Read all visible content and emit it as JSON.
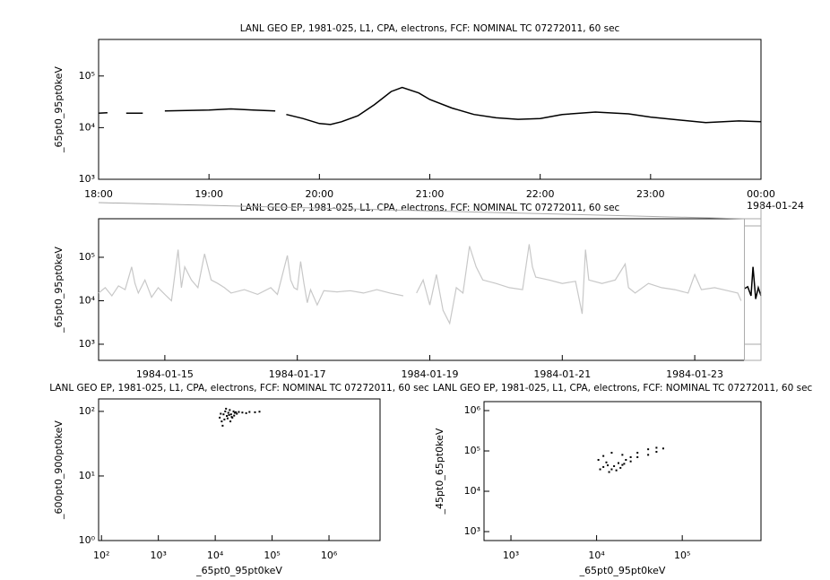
{
  "chart_data": [
    {
      "type": "line",
      "title": "LANL GEO EP, 1981-025, L1, CPA, electrons, FCF: NOMINAL TC 07272011, 60 sec",
      "y_label": "_65pt0_95pt0keV",
      "log_y": true,
      "xlim": [
        18,
        24
      ],
      "xticks": [
        {
          "value": 18,
          "label": "18:00"
        },
        {
          "value": 19,
          "label": "19:00"
        },
        {
          "value": 20,
          "label": "20:00"
        },
        {
          "value": 21,
          "label": "21:00"
        },
        {
          "value": 22,
          "label": "22:00"
        },
        {
          "value": 23,
          "label": "23:00"
        },
        {
          "value": 24,
          "label": "00:00"
        }
      ],
      "x_annotation": "1984-01-24",
      "ylim": [
        1000,
        510000
      ],
      "yticks": [
        {
          "value": 1000,
          "label": "10³"
        },
        {
          "value": 10000,
          "label": "10⁴"
        },
        {
          "value": 100000,
          "label": "10⁵"
        }
      ],
      "series": [
        {
          "color": "#000000",
          "x": [
            18.0,
            18.08,
            18.13,
            18.25,
            18.4,
            18.5,
            18.6,
            18.8,
            19.0,
            19.2,
            19.4,
            19.6,
            19.65,
            19.7,
            19.85,
            20.0,
            20.1,
            20.2,
            20.35,
            20.5,
            20.65,
            20.75,
            20.9,
            21.0,
            21.2,
            21.4,
            21.6,
            21.8,
            22.0,
            22.2,
            22.5,
            22.8,
            23.0,
            23.2,
            23.5,
            23.8,
            24.0
          ],
          "values": [
            19000,
            19500,
            null,
            19000,
            19000,
            null,
            21000,
            21500,
            22000,
            23000,
            22000,
            21000,
            null,
            18000,
            15000,
            12000,
            11500,
            13000,
            17000,
            28000,
            50000,
            60000,
            47000,
            35000,
            24000,
            18000,
            15500,
            14500,
            15000,
            18000,
            20000,
            18500,
            16000,
            14500,
            12500,
            13500,
            13000
          ]
        }
      ]
    },
    {
      "type": "line",
      "title": "LANL GEO EP, 1981-025, L1, CPA, electrons, FCF: NOMINAL TC 07272011, 60 sec",
      "y_label": "_65pt0_95pt0keV",
      "log_y": true,
      "xlim": [
        14,
        24
      ],
      "xticks": [
        {
          "value": 15,
          "label": "1984-01-15"
        },
        {
          "value": 17,
          "label": "1984-01-17"
        },
        {
          "value": 19,
          "label": "1984-01-19"
        },
        {
          "value": 21,
          "label": "1984-01-21"
        },
        {
          "value": 23,
          "label": "1984-01-23"
        }
      ],
      "ylim": [
        425,
        770000
      ],
      "yticks": [
        {
          "value": 1000,
          "label": "10³"
        },
        {
          "value": 10000,
          "label": "10⁴"
        },
        {
          "value": 100000,
          "label": "10⁵"
        }
      ],
      "series": [
        {
          "color": "#c8c8c8",
          "x": [
            14.0,
            14.1,
            14.2,
            14.3,
            14.4,
            14.5,
            14.55,
            14.6,
            14.7,
            14.8,
            14.9,
            15.0,
            15.1,
            15.2,
            15.25,
            15.3,
            15.4,
            15.5,
            15.6,
            15.7,
            15.8,
            15.9,
            16.0,
            16.2,
            16.4,
            16.6,
            16.7,
            16.85,
            16.9,
            16.95,
            17.0,
            17.05,
            17.1,
            17.15,
            17.2,
            17.3,
            17.4,
            17.6,
            17.8,
            18.0,
            18.2,
            18.4,
            18.6,
            18.7,
            18.8,
            18.9,
            19.0,
            19.1,
            19.2,
            19.3,
            19.4,
            19.5,
            19.55,
            19.6,
            19.7,
            19.8,
            20.0,
            20.2,
            20.4,
            20.5,
            20.55,
            20.6,
            20.8,
            21.0,
            21.2,
            21.3,
            21.35,
            21.4,
            21.6,
            21.8,
            21.95,
            22.0,
            22.1,
            22.3,
            22.5,
            22.7,
            22.9,
            23.0,
            23.1,
            23.3,
            23.5,
            23.65,
            23.7
          ],
          "values": [
            15000,
            20000,
            13000,
            22000,
            18000,
            60000,
            25000,
            15000,
            30000,
            12000,
            20000,
            14000,
            10000,
            150000,
            20000,
            60000,
            30000,
            20000,
            120000,
            30000,
            25000,
            20000,
            15000,
            18000,
            14000,
            20000,
            14000,
            110000,
            30000,
            20000,
            18000,
            80000,
            25000,
            9000,
            18000,
            8000,
            17000,
            16000,
            17000,
            15000,
            18000,
            15000,
            13000,
            null,
            15000,
            30000,
            8000,
            40000,
            6000,
            3000,
            20000,
            15000,
            50000,
            180000,
            60000,
            30000,
            25000,
            20000,
            18000,
            200000,
            60000,
            35000,
            30000,
            25000,
            28000,
            5000,
            150000,
            30000,
            25000,
            30000,
            70000,
            20000,
            15000,
            25000,
            20000,
            18000,
            15000,
            40000,
            18000,
            20000,
            17000,
            15000,
            10000
          ]
        },
        {
          "color": "#000000",
          "x": [
            23.75,
            23.8,
            23.85,
            23.88,
            23.92,
            23.96,
            24.0
          ],
          "values": [
            19000,
            21000,
            13000,
            60000,
            11000,
            20000,
            13000
          ]
        }
      ]
    },
    {
      "type": "scatter",
      "title": "LANL GEO EP, 1981-025, L1, CPA, electrons, FCF: NOMINAL TC 07272011, 60 sec",
      "x_label": "_65pt0_95pt0keV",
      "y_label": "_600pt0_900pt0keV",
      "log_x": true,
      "log_y": true,
      "xlim": [
        89,
        7900000
      ],
      "xticks": [
        {
          "value": 100,
          "label": "10²"
        },
        {
          "value": 1000,
          "label": "10³"
        },
        {
          "value": 10000,
          "label": "10⁴"
        },
        {
          "value": 100000,
          "label": "10⁵"
        },
        {
          "value": 1000000,
          "label": "10⁶"
        }
      ],
      "ylim": [
        1,
        156
      ],
      "yticks": [
        {
          "value": 1,
          "label": "10⁰"
        },
        {
          "value": 10,
          "label": "10¹"
        },
        {
          "value": 100,
          "label": "10²"
        }
      ],
      "series": [
        {
          "color": "#000000",
          "x": [
            12000,
            13000,
            14000,
            15000,
            16000,
            17000,
            18000,
            19000,
            20000,
            21000,
            22000,
            24000,
            26000,
            14500,
            15500,
            17500,
            19500,
            23000,
            30000,
            35000,
            40000,
            50000,
            60000,
            13500,
            16500,
            12500,
            18500,
            21500
          ],
          "values": [
            80,
            70,
            90,
            100,
            85,
            95,
            105,
            90,
            80,
            100,
            95,
            92,
            98,
            75,
            110,
            88,
            82,
            97,
            96,
            94,
            98,
            97,
            99,
            60,
            78,
            92,
            70,
            86
          ]
        }
      ]
    },
    {
      "type": "scatter",
      "title": "LANL GEO EP, 1981-025, L1, CPA, electrons, FCF: NOMINAL TC 07272011, 60 sec",
      "x_label": "_65pt0_95pt0keV",
      "y_label": "_45pt0_65pt0keV",
      "log_x": true,
      "log_y": true,
      "xlim": [
        485,
        830000
      ],
      "xticks": [
        {
          "value": 1000,
          "label": "10³"
        },
        {
          "value": 10000,
          "label": "10⁴"
        },
        {
          "value": 100000,
          "label": "10⁵"
        }
      ],
      "ylim": [
        600,
        1670000
      ],
      "yticks": [
        {
          "value": 1000,
          "label": "10³"
        },
        {
          "value": 10000,
          "label": "10⁴"
        },
        {
          "value": 100000,
          "label": "10⁵"
        },
        {
          "value": 1000000,
          "label": "10⁶"
        }
      ],
      "series": [
        {
          "color": "#000000",
          "x": [
            12000,
            15000,
            18000,
            20000,
            14000,
            22000,
            16000,
            13000,
            19000,
            25000,
            11000,
            25000,
            30000,
            40000,
            50000,
            60000,
            50000,
            40000,
            30000,
            20000,
            15000,
            12000,
            10500,
            17000,
            21000,
            13500
          ],
          "values": [
            40000,
            35000,
            50000,
            45000,
            30000,
            60000,
            42000,
            52000,
            38000,
            55000,
            35000,
            70000,
            90000,
            110000,
            120000,
            115000,
            95000,
            80000,
            70000,
            80000,
            90000,
            75000,
            60000,
            33000,
            48000,
            44000
          ]
        }
      ]
    }
  ]
}
